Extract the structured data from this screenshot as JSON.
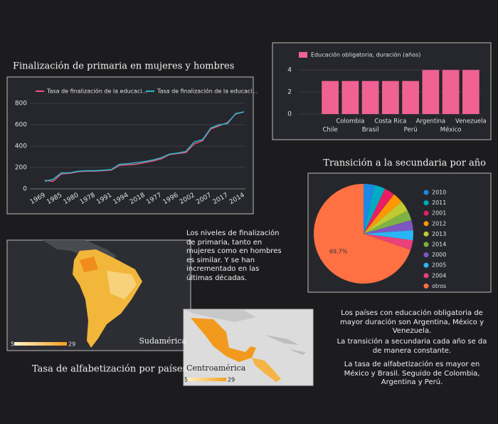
{
  "chart_data": [
    {
      "type": "line",
      "title": "Finalización de primaria en mujeres y hombres",
      "categories": [
        "1969",
        null,
        "1985",
        null,
        "1980",
        null,
        "1978",
        null,
        "1991",
        null,
        "1994",
        null,
        "2018",
        null,
        "1977",
        null,
        "1996",
        null,
        "2002",
        null,
        "2007",
        null,
        "2017",
        null,
        "2014"
      ],
      "series": [
        {
          "name": "Tasa de finalización de la educaci...",
          "color": "#e8577a",
          "values": [
            80,
            70,
            140,
            145,
            160,
            165,
            165,
            170,
            175,
            220,
            225,
            230,
            245,
            260,
            280,
            320,
            330,
            340,
            420,
            450,
            560,
            590,
            620,
            700,
            720
          ]
        },
        {
          "name": "Tasa de finalización de la educaci...",
          "color": "#26b5c9",
          "values": [
            70,
            90,
            150,
            150,
            165,
            170,
            170,
            175,
            180,
            230,
            235,
            245,
            255,
            270,
            290,
            325,
            335,
            350,
            440,
            460,
            570,
            600,
            610,
            705,
            720
          ]
        }
      ],
      "ylim": [
        0,
        850
      ],
      "yticks": [
        0,
        200,
        400,
        600,
        800
      ],
      "grid": true
    },
    {
      "type": "bar",
      "title": null,
      "categories": [
        "Chile",
        "Colombia",
        "Brasil",
        "Costa Rica",
        "Perú",
        "Argentina",
        "México",
        "Venezuela"
      ],
      "series": [
        {
          "name": "Educación obligatoria, duración (años)",
          "color": "#f06292",
          "values": [
            3,
            3,
            3,
            3,
            3,
            4,
            4,
            4
          ]
        }
      ],
      "ylim": [
        0,
        4.4
      ],
      "yticks": [
        0,
        2,
        4
      ],
      "grid": true
    },
    {
      "type": "pie",
      "title": "Transición a la secundaria por año",
      "categories": [
        "2010",
        "2011",
        "2001",
        "2012",
        "2013",
        "2014",
        "2000",
        "2005",
        "2004",
        "otros"
      ],
      "values": [
        3.6,
        3.5,
        3.4,
        3.4,
        3.4,
        3.3,
        3.3,
        3.2,
        3.2,
        69.7
      ],
      "value_labels": [
        null,
        null,
        null,
        null,
        null,
        null,
        null,
        null,
        null,
        "69,7%"
      ],
      "colors": [
        "#1e88e5",
        "#00acc1",
        "#e91e63",
        "#ff9800",
        "#c0ca33",
        "#7cb342",
        "#7e57c2",
        "#29b6f6",
        "#ec407a",
        "#ff7043"
      ]
    }
  ],
  "maps": {
    "title": "Tasa de alfabetización por países",
    "items": [
      {
        "label": "Sudamérica",
        "scale": [
          5,
          29
        ]
      },
      {
        "label": "Centroamérica",
        "scale": [
          5,
          29
        ]
      }
    ]
  },
  "notes": [
    "Los niveles de finalización de primaria, tanto en mujeres como en hombres es similar. Y se han incrementado en las últimas décadas.",
    "Los países con educación obligatoria de mayor duración son Argentina, México y Venezuela.",
    "La transición a secundaria cada año se da de manera constante.",
    "La tasa de alfabetización es mayor en México y Brasil. Seguido de Colombia, Argentina y Perú."
  ]
}
